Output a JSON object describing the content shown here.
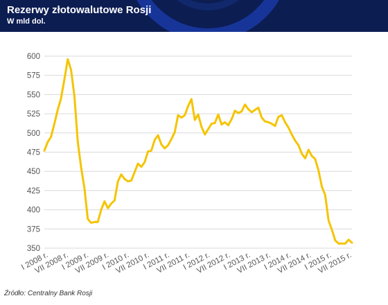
{
  "header": {
    "title": "Rezerwy złotowalutowe Rosji",
    "subtitle": "W mld dol."
  },
  "source": "Źródło: Centralny Bank Rosji",
  "colors": {
    "header_bg": "#0c1d52",
    "line": "#f5c400",
    "grid": "#d9d9d9",
    "header_decoration": "#1a3aa6"
  },
  "chart_data": {
    "type": "line",
    "title": "Rezerwy złotowalutowe Rosji",
    "subtitle": "W mld dol.",
    "xlabel": "",
    "ylabel": "",
    "ylim": [
      350,
      600
    ],
    "y_ticks": [
      350,
      375,
      400,
      425,
      450,
      475,
      500,
      525,
      550,
      575,
      600
    ],
    "x_tick_labels": [
      "I 2008 r.",
      "VII 2008 r.",
      "I 2009 r.",
      "VII 2009 r.",
      "I 2010 r.",
      "VII 2010 r.",
      "I 2011 r.",
      "VII 2011 r.",
      "I 2012 r.",
      "VII 2012 r.",
      "I 2013 r.",
      "VII 2013 r.",
      "I 2014 r.",
      "VII 2014 r.",
      "I 2015 r.",
      "VII 2015 r."
    ],
    "grid": "horizontal",
    "legend": "none",
    "series": [
      {
        "values": [
          477,
          488,
          495,
          512,
          530,
          545,
          570,
          596,
          582,
          548,
          488,
          455,
          428,
          388,
          383,
          384,
          384,
          400,
          411,
          402,
          408,
          412,
          437,
          446,
          440,
          437,
          438,
          449,
          460,
          456,
          462,
          476,
          477,
          491,
          497,
          485,
          480,
          484,
          492,
          501,
          523,
          520,
          523,
          535,
          544,
          517,
          524,
          508,
          498,
          505,
          512,
          513,
          524,
          511,
          514,
          510,
          518,
          529,
          526,
          528,
          537,
          531,
          527,
          530,
          533,
          520,
          515,
          514,
          512,
          509,
          521,
          523,
          514,
          507,
          498,
          490,
          484,
          473,
          467,
          478,
          470,
          466,
          451,
          430,
          419,
          386,
          374,
          360,
          356,
          356,
          356,
          361,
          357
        ]
      }
    ]
  }
}
